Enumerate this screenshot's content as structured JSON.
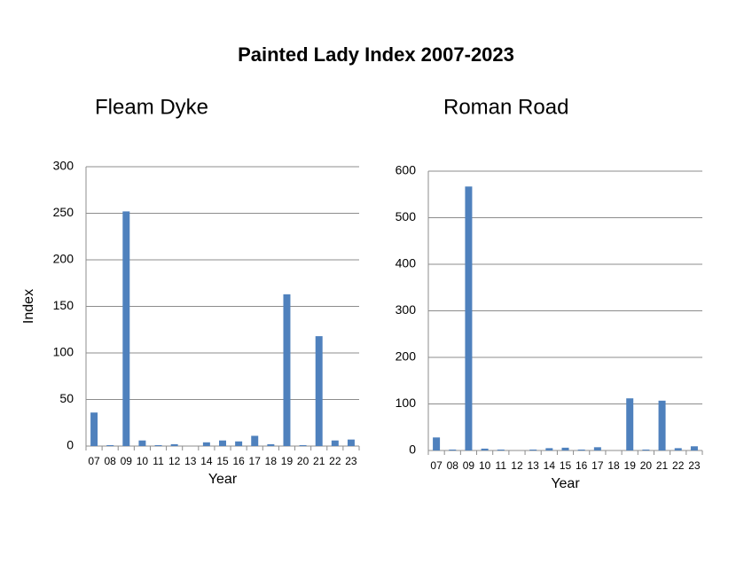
{
  "title": "Painted Lady Index 2007-2023",
  "chart_data": [
    {
      "type": "bar",
      "title": "Fleam Dyke",
      "x_label": "Year",
      "y_label": "Index",
      "categories": [
        "07",
        "08",
        "09",
        "10",
        "11",
        "12",
        "13",
        "14",
        "15",
        "16",
        "17",
        "18",
        "19",
        "20",
        "21",
        "22",
        "23"
      ],
      "values": [
        36,
        1,
        252,
        6,
        1,
        2,
        0,
        4,
        6,
        5,
        11,
        2,
        163,
        1,
        118,
        6,
        7
      ],
      "color": "#4f81bd",
      "ylim": [
        0,
        300
      ],
      "yticks": [
        0,
        50,
        100,
        150,
        200,
        250,
        300
      ],
      "grid": true
    },
    {
      "type": "bar",
      "title": "Roman Road",
      "x_label": "Year",
      "categories": [
        "07",
        "08",
        "09",
        "10",
        "11",
        "12",
        "13",
        "14",
        "15",
        "16",
        "17",
        "18",
        "19",
        "20",
        "21",
        "22",
        "23"
      ],
      "values": [
        28,
        2,
        567,
        4,
        2,
        0,
        2,
        5,
        6,
        2,
        7,
        0,
        112,
        2,
        107,
        5,
        9
      ],
      "color": "#4f81bd",
      "ylim": [
        0,
        600
      ],
      "yticks": [
        0,
        100,
        200,
        300,
        400,
        500,
        600
      ],
      "grid": true
    }
  ]
}
